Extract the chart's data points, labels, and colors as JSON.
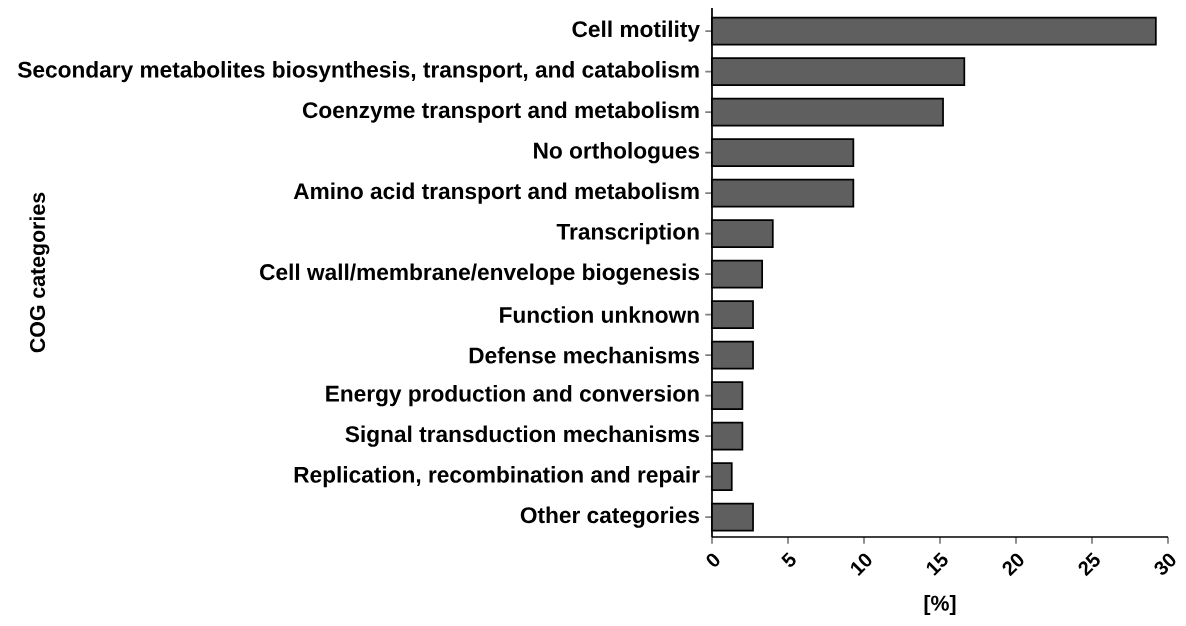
{
  "chart_data": {
    "type": "bar",
    "orientation": "horizontal",
    "ylabel": "COG categories",
    "xlabel": "[%]",
    "categories": [
      "Cell motility",
      "Secondary metabolites biosynthesis, transport, and catabolism",
      "Coenzyme transport and metabolism",
      "No orthologues",
      "Amino acid transport and metabolism",
      "Transcription",
      "Cell wall/membrane/envelope biogenesis",
      "Function unknown",
      "Defense mechanisms",
      "Energy production and conversion",
      "Signal transduction mechanisms",
      "Replication, recombination and repair",
      "Other categories"
    ],
    "values": [
      29.2,
      16.6,
      15.2,
      9.3,
      9.3,
      4.0,
      3.3,
      2.7,
      2.7,
      2.0,
      2.0,
      1.3,
      2.7
    ],
    "color": "#5f5f5f",
    "xlim": [
      0,
      30
    ],
    "xticks": [
      0,
      5,
      10,
      15,
      20,
      25,
      30
    ],
    "grid": false
  }
}
